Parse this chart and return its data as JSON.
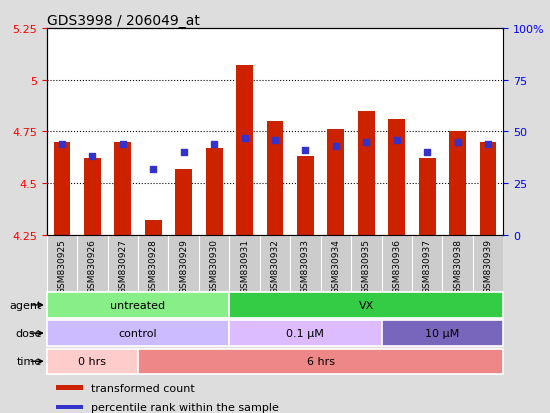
{
  "title": "GDS3998 / 206049_at",
  "samples": [
    "GSM830925",
    "GSM830926",
    "GSM830927",
    "GSM830928",
    "GSM830929",
    "GSM830930",
    "GSM830931",
    "GSM830932",
    "GSM830933",
    "GSM830934",
    "GSM830935",
    "GSM830936",
    "GSM830937",
    "GSM830938",
    "GSM830939"
  ],
  "transformed_counts": [
    4.7,
    4.62,
    4.7,
    4.32,
    4.57,
    4.67,
    5.07,
    4.8,
    4.63,
    4.76,
    4.85,
    4.81,
    4.62,
    4.75,
    4.7
  ],
  "percentile_ranks": [
    44,
    38,
    44,
    32,
    40,
    44,
    47,
    46,
    41,
    43,
    45,
    46,
    40,
    45,
    44
  ],
  "ylim_left": [
    4.25,
    5.25
  ],
  "ylim_right": [
    0,
    100
  ],
  "yticks_left": [
    4.25,
    4.5,
    4.75,
    5.0,
    5.25
  ],
  "yticks_right": [
    0,
    25,
    50,
    75,
    100
  ],
  "ytick_labels_left": [
    "4.25",
    "4.5",
    "4.75",
    "5",
    "5.25"
  ],
  "ytick_labels_right": [
    "0",
    "25",
    "50",
    "75",
    "100%"
  ],
  "hlines": [
    4.5,
    4.75,
    5.0
  ],
  "bar_color": "#cc2200",
  "percentile_color": "#3333cc",
  "bar_bottom": 4.25,
  "agent_groups": [
    {
      "label": "untreated",
      "start": 0,
      "end": 6,
      "color": "#88ee88"
    },
    {
      "label": "VX",
      "start": 6,
      "end": 15,
      "color": "#33cc44"
    }
  ],
  "dose_groups": [
    {
      "label": "control",
      "start": 0,
      "end": 6,
      "color": "#ccbbff"
    },
    {
      "label": "0.1 μM",
      "start": 6,
      "end": 11,
      "color": "#ddbbff"
    },
    {
      "label": "10 μM",
      "start": 11,
      "end": 15,
      "color": "#7766bb"
    }
  ],
  "time_groups": [
    {
      "label": "0 hrs",
      "start": 0,
      "end": 3,
      "color": "#ffcccc"
    },
    {
      "label": "6 hrs",
      "start": 3,
      "end": 15,
      "color": "#ee8888"
    }
  ],
  "row_labels": [
    "agent",
    "dose",
    "time"
  ],
  "legend_items": [
    {
      "label": "transformed count",
      "color": "#cc2200"
    },
    {
      "label": "percentile rank within the sample",
      "color": "#3333cc"
    }
  ],
  "background_color": "#dddddd",
  "plot_bg_color": "#ffffff",
  "xticklabel_bg": "#cccccc"
}
